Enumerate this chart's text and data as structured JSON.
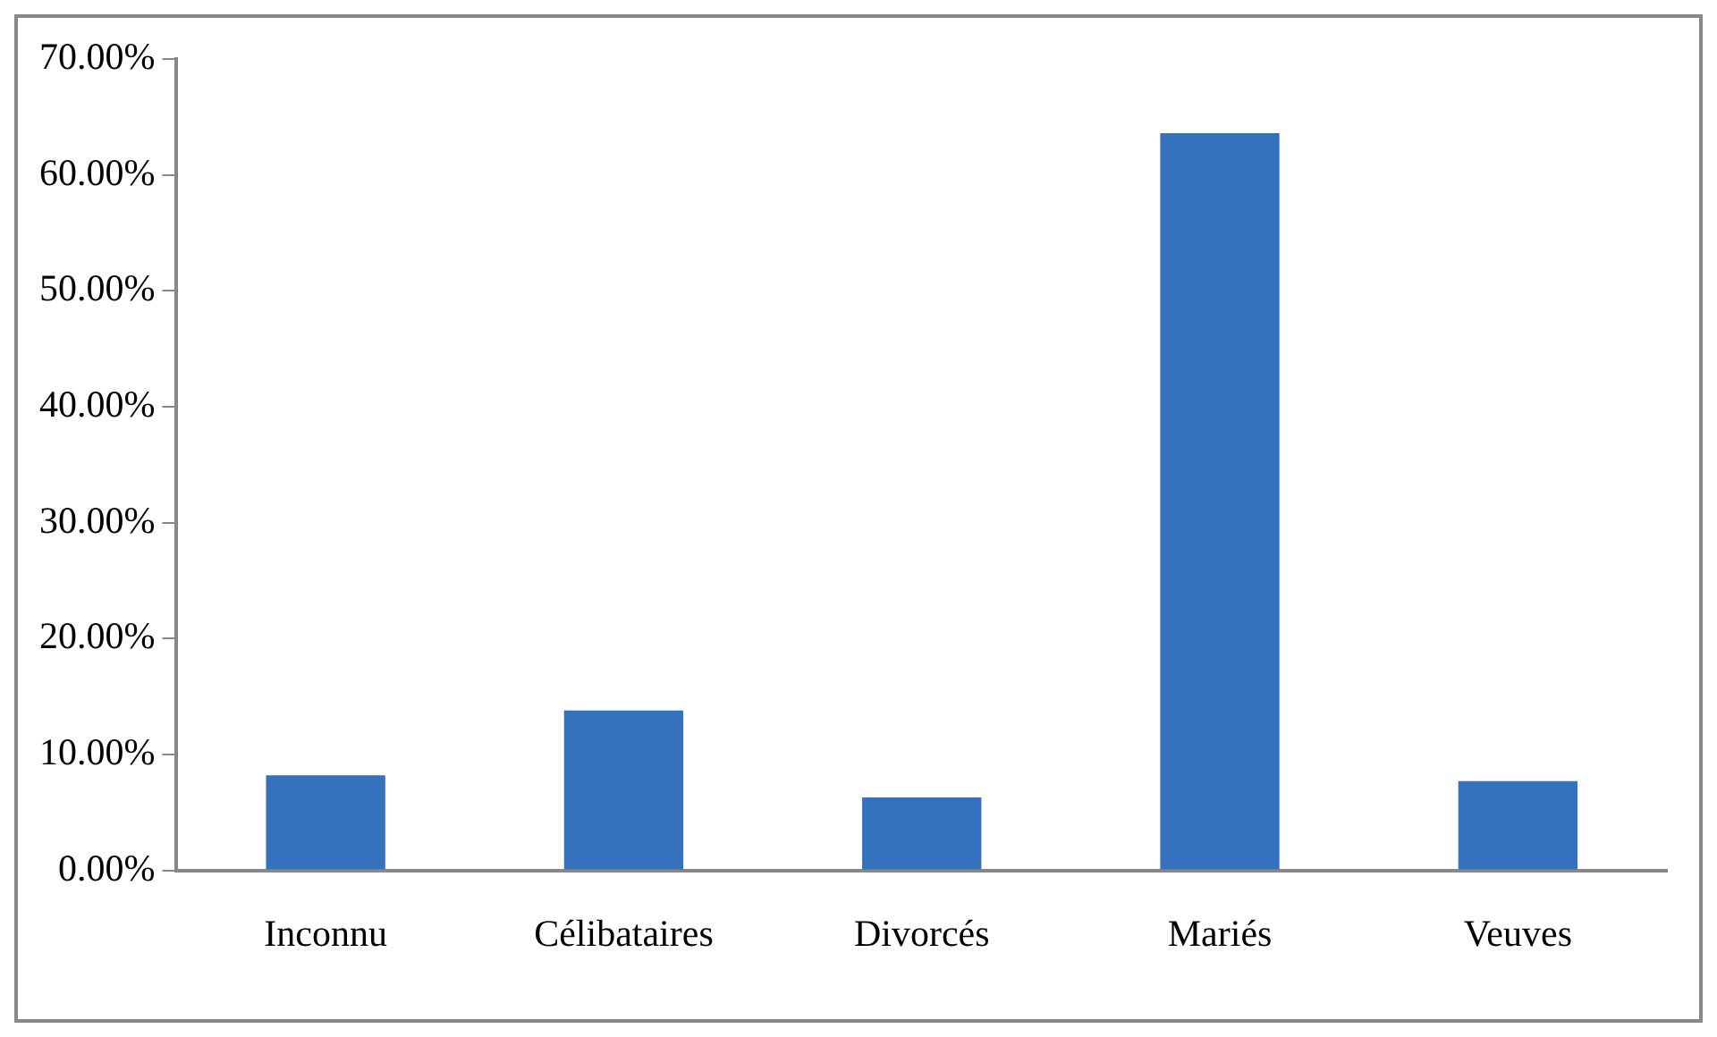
{
  "chart_data": {
    "type": "bar",
    "categories": [
      "Inconnu",
      "Célibataires",
      "Divorcés",
      "Mariés",
      "Veuves"
    ],
    "values": [
      8.2,
      13.8,
      6.3,
      63.6,
      7.7
    ],
    "color": "#3572bd",
    "ylim": [
      0,
      70
    ],
    "yticks": [
      {
        "value": 0,
        "label": "0.00%"
      },
      {
        "value": 10,
        "label": "10.00%"
      },
      {
        "value": 20,
        "label": "20.00%"
      },
      {
        "value": 30,
        "label": "30.00%"
      },
      {
        "value": 40,
        "label": "40.00%"
      },
      {
        "value": 50,
        "label": "50.00%"
      },
      {
        "value": 60,
        "label": "60.00%"
      },
      {
        "value": 70,
        "label": "70.00%"
      }
    ],
    "grid": false,
    "legend": false
  }
}
